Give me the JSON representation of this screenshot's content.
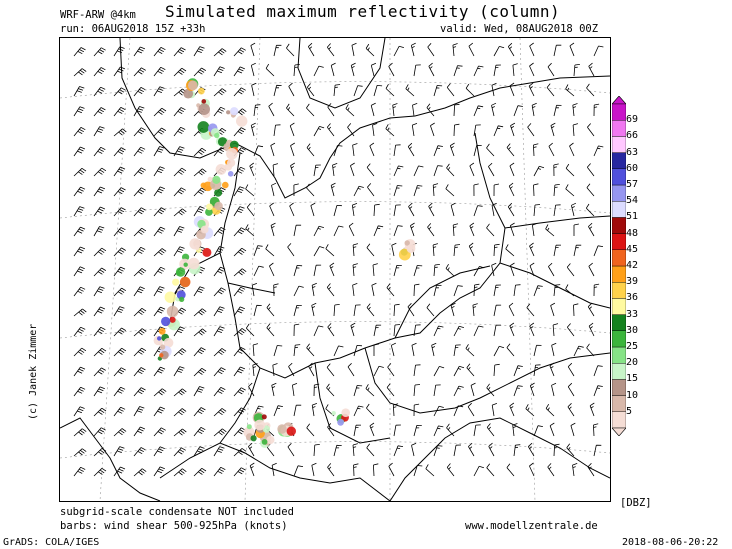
{
  "header": {
    "title": "Simulated maximum reflectivity (column)",
    "model": "WRF-ARW @4km",
    "run": "run: 06AUG2018 15Z +33h",
    "valid": "valid: Wed, 08AUG2018 00Z"
  },
  "credit": "(c) Janek Zimmer",
  "legend": {
    "unit": "[DBZ]",
    "levels": [
      "5",
      "10",
      "15",
      "20",
      "25",
      "30",
      "33",
      "36",
      "39",
      "42",
      "45",
      "48",
      "51",
      "54",
      "57",
      "60",
      "63",
      "66",
      "69"
    ],
    "colors": [
      "#f5ddd5",
      "#d8b8aa",
      "#b59488",
      "#c8f5c8",
      "#86e386",
      "#3cb53c",
      "#14821e",
      "#fffaa0",
      "#ffd24b",
      "#ffa019",
      "#f0641e",
      "#dc1414",
      "#a00a0a",
      "#dcdcff",
      "#9696f0",
      "#5050dc",
      "#2828a0",
      "#ffc8ff",
      "#f078f0",
      "#c814c8"
    ]
  },
  "notes": {
    "line1": "subgrid-scale condensate NOT included",
    "line2": "barbs: wind shear 500-925hPa (knots)"
  },
  "website": "www.modellzentrale.de",
  "footer": {
    "left": "GrADS: COLA/IGES",
    "right": "2018-08-06-20:22"
  }
}
